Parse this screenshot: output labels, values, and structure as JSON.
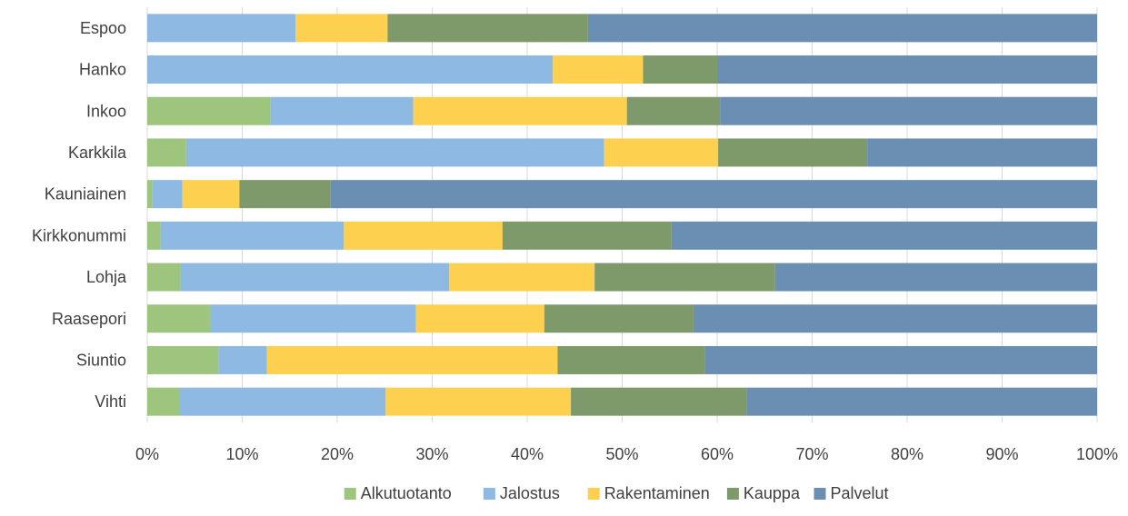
{
  "chart_data": {
    "type": "bar",
    "orientation": "horizontal",
    "stacked": "percent",
    "title": "",
    "xlabel": "",
    "ylabel": "",
    "xlim": [
      0,
      1
    ],
    "x_ticks": [
      "0%",
      "10%",
      "20%",
      "30%",
      "40%",
      "50%",
      "60%",
      "70%",
      "80%",
      "90%",
      "100%"
    ],
    "grid": true,
    "legend_position": "bottom",
    "categories": [
      "Espoo",
      "Hanko",
      "Inkoo",
      "Karkkila",
      "Kauniainen",
      "Kirkkonummi",
      "Lohja",
      "Raasepori",
      "Siuntio",
      "Vihti"
    ],
    "series": [
      {
        "name": "Alkutuotanto",
        "color": "#9dc57e",
        "values": [
          0.0,
          0.0,
          0.13,
          0.041,
          0.005,
          0.014,
          0.035,
          0.066,
          0.075,
          0.034
        ]
      },
      {
        "name": "Jalostus",
        "color": "#8db9e2",
        "values": [
          0.156,
          0.427,
          0.15,
          0.44,
          0.032,
          0.193,
          0.283,
          0.217,
          0.051,
          0.217
        ]
      },
      {
        "name": "Rakentaminen",
        "color": "#fdd14f",
        "values": [
          0.097,
          0.095,
          0.225,
          0.12,
          0.06,
          0.167,
          0.153,
          0.135,
          0.306,
          0.195
        ]
      },
      {
        "name": "Kauppa",
        "color": "#7f9a6a",
        "values": [
          0.211,
          0.078,
          0.098,
          0.157,
          0.096,
          0.178,
          0.19,
          0.157,
          0.155,
          0.185
        ]
      },
      {
        "name": "Palvelut",
        "color": "#6a8fb3",
        "values": [
          0.536,
          0.4,
          0.397,
          0.242,
          0.807,
          0.448,
          0.339,
          0.425,
          0.413,
          0.369
        ]
      }
    ]
  }
}
